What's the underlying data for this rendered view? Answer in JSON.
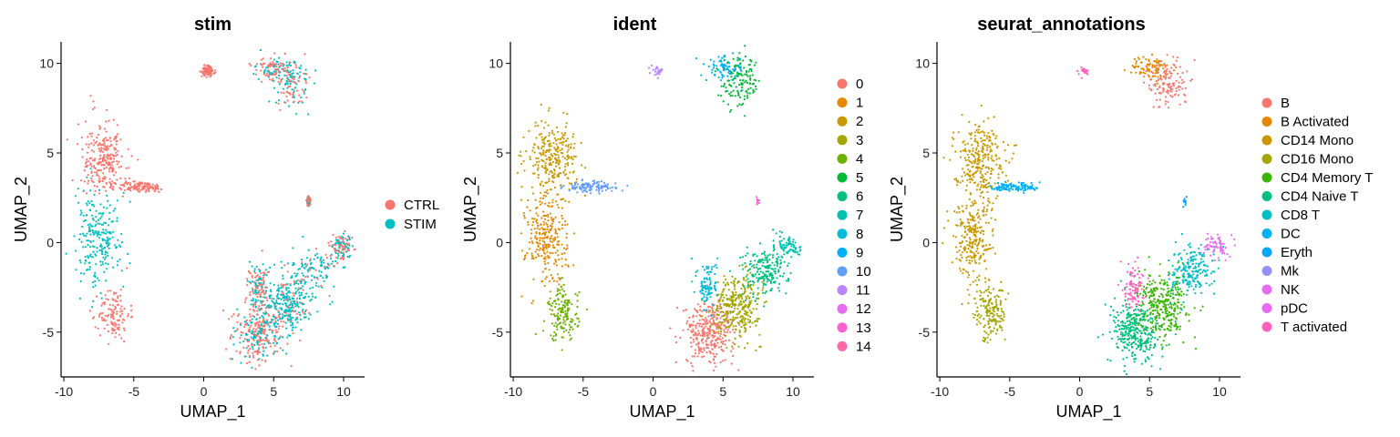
{
  "chart_data": [
    {
      "type": "scatter",
      "title": "stim",
      "xlabel": "UMAP_1",
      "ylabel": "UMAP_2",
      "xlim": [
        -10.2,
        11.5
      ],
      "ylim": [
        -7.5,
        11.2
      ],
      "xticks": [
        -10,
        -5,
        0,
        5,
        10
      ],
      "yticks": [
        -5,
        0,
        5,
        10
      ],
      "xtick_labels": [
        "-10",
        "-5",
        "0",
        "5",
        "10"
      ],
      "ytick_labels": [
        "-5",
        "0",
        "5",
        "10"
      ],
      "grid": false,
      "legend_placement": "right",
      "series": [
        {
          "name": "CTRL",
          "color": "#F8766D"
        },
        {
          "name": "STIM",
          "color": "#00BFC4"
        }
      ]
    },
    {
      "type": "scatter",
      "title": "ident",
      "xlabel": "UMAP_1",
      "ylabel": "UMAP_2",
      "xlim": [
        -10.2,
        11.5
      ],
      "ylim": [
        -7.5,
        11.2
      ],
      "xticks": [
        -10,
        -5,
        0,
        5,
        10
      ],
      "yticks": [
        -5,
        0,
        5,
        10
      ],
      "xtick_labels": [
        "-10",
        "-5",
        "0",
        "5",
        "10"
      ],
      "ytick_labels": [
        "-5",
        "0",
        "5",
        "10"
      ],
      "grid": false,
      "legend_placement": "right",
      "series": [
        {
          "name": "0",
          "color": "#F8766D"
        },
        {
          "name": "1",
          "color": "#E58700"
        },
        {
          "name": "2",
          "color": "#C99800"
        },
        {
          "name": "3",
          "color": "#A3A500"
        },
        {
          "name": "4",
          "color": "#6BB100"
        },
        {
          "name": "5",
          "color": "#00BA38"
        },
        {
          "name": "6",
          "color": "#00BF7D"
        },
        {
          "name": "7",
          "color": "#00C0AF"
        },
        {
          "name": "8",
          "color": "#00BCD8"
        },
        {
          "name": "9",
          "color": "#00B0F6"
        },
        {
          "name": "10",
          "color": "#619CFF"
        },
        {
          "name": "11",
          "color": "#B983FF"
        },
        {
          "name": "12",
          "color": "#E76BF3"
        },
        {
          "name": "13",
          "color": "#FD61D1"
        },
        {
          "name": "14",
          "color": "#FF67A4"
        }
      ]
    },
    {
      "type": "scatter",
      "title": "seurat_annotations",
      "xlabel": "UMAP_1",
      "ylabel": "UMAP_2",
      "xlim": [
        -10.2,
        11.5
      ],
      "ylim": [
        -7.5,
        11.2
      ],
      "xticks": [
        -10,
        -5,
        0,
        5,
        10
      ],
      "yticks": [
        -5,
        0,
        5,
        10
      ],
      "xtick_labels": [
        "-10",
        "-5",
        "0",
        "5",
        "10"
      ],
      "ytick_labels": [
        "-5",
        "0",
        "5",
        "10"
      ],
      "grid": false,
      "legend_placement": "right",
      "series": [
        {
          "name": "B",
          "color": "#F8766D"
        },
        {
          "name": "B Activated",
          "color": "#E58700"
        },
        {
          "name": "CD14 Mono",
          "color": "#C99800"
        },
        {
          "name": "CD16 Mono",
          "color": "#A3A500"
        },
        {
          "name": "CD4 Memory T",
          "color": "#39B600"
        },
        {
          "name": "CD4 Naive T",
          "color": "#00BF7D"
        },
        {
          "name": "CD8 T",
          "color": "#00BFC4"
        },
        {
          "name": "DC",
          "color": "#00B0F6"
        },
        {
          "name": "Eryth",
          "color": "#00A9FF"
        },
        {
          "name": "Mk",
          "color": "#9590FF"
        },
        {
          "name": "NK",
          "color": "#E76BF3"
        },
        {
          "name": "pDC",
          "color": "#E76BF3"
        },
        {
          "name": "T activated",
          "color": "#FF62BC"
        }
      ]
    }
  ]
}
